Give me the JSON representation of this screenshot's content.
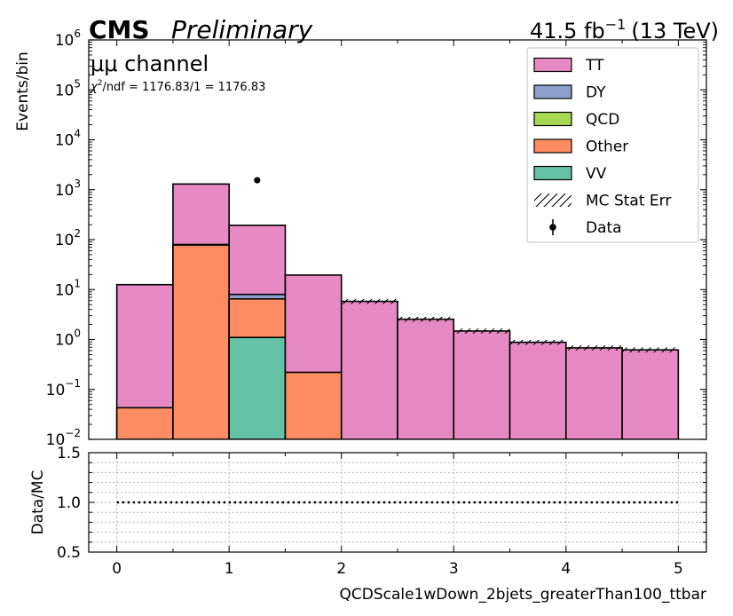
{
  "header": {
    "cms": "CMS",
    "preliminary": "Preliminary",
    "lumi": "41.5 fb",
    "lumi_exp": "−1",
    "energy": "(13 TeV)"
  },
  "annotations": {
    "channel": "μμ channel",
    "chi2_prefix": "χ",
    "chi2_exp": "2",
    "chi2_rest": "/ndf = 1176.83/1 = 1176.83"
  },
  "colors": {
    "TT": "#e78ac3",
    "DY": "#8da0cb",
    "QCD": "#a6d854",
    "Other": "#fc8d62",
    "VV": "#66c2a5"
  },
  "chart_data": [
    {
      "type": "bar",
      "stacked": true,
      "log_y": true,
      "ylabel": "Events/bin",
      "ylim": [
        0.01,
        1000000
      ],
      "xlim": [
        -0.25,
        5.25
      ],
      "bin_edges": [
        0,
        0.5,
        1,
        1.5,
        2,
        2.5,
        3,
        3.5,
        4,
        4.5,
        5
      ],
      "totals": [
        12.5,
        1300,
        195,
        19.5,
        5.8,
        2.55,
        1.48,
        0.88,
        0.68,
        0.62
      ],
      "series": [
        {
          "name": "TT",
          "values": [
            12.5,
            1220,
            186,
            19.3,
            5.8,
            2.55,
            1.48,
            0.88,
            0.68,
            0.62
          ]
        },
        {
          "name": "DY",
          "values": [
            0,
            2,
            1.5,
            0,
            0,
            0,
            0,
            0,
            0,
            0
          ]
        },
        {
          "name": "QCD",
          "values": [
            0,
            0,
            0,
            0,
            0,
            0,
            0,
            0,
            0,
            0
          ]
        },
        {
          "name": "Other",
          "values": [
            0.043,
            78,
            5.4,
            0.22,
            0,
            0,
            0,
            0,
            0,
            0
          ]
        },
        {
          "name": "VV",
          "values": [
            0,
            0,
            1.1,
            0,
            0,
            0,
            0,
            0,
            0,
            0
          ]
        }
      ],
      "data_points": [
        {
          "x": 1.25,
          "y": 1550
        }
      ],
      "y_tick_labels": [
        {
          "base": "10",
          "exp": "−2"
        },
        {
          "base": "10",
          "exp": "−1"
        },
        {
          "base": "10",
          "exp": "0"
        },
        {
          "base": "10",
          "exp": "1"
        },
        {
          "base": "10",
          "exp": "2"
        },
        {
          "base": "10",
          "exp": "3"
        },
        {
          "base": "10",
          "exp": "4"
        },
        {
          "base": "10",
          "exp": "5"
        },
        {
          "base": "10",
          "exp": "6"
        }
      ],
      "legend": {
        "placement": "top-right",
        "entries": [
          "TT",
          "DY",
          "QCD",
          "Other",
          "VV",
          "MC Stat Err",
          "Data"
        ]
      }
    },
    {
      "type": "line",
      "ylabel": "Data/MC",
      "xlabel": "QCDScale1wDown_2bjets_greaterThan100_ttbar",
      "ylim": [
        0.5,
        1.5
      ],
      "x_ticks": [
        "0",
        "1",
        "2",
        "3",
        "4",
        "5"
      ],
      "y_ticks": [
        "0.5",
        "1.0",
        "1.5"
      ],
      "reference_line": {
        "x": [
          0,
          5
        ],
        "y": 1.0
      },
      "grid": true
    }
  ]
}
